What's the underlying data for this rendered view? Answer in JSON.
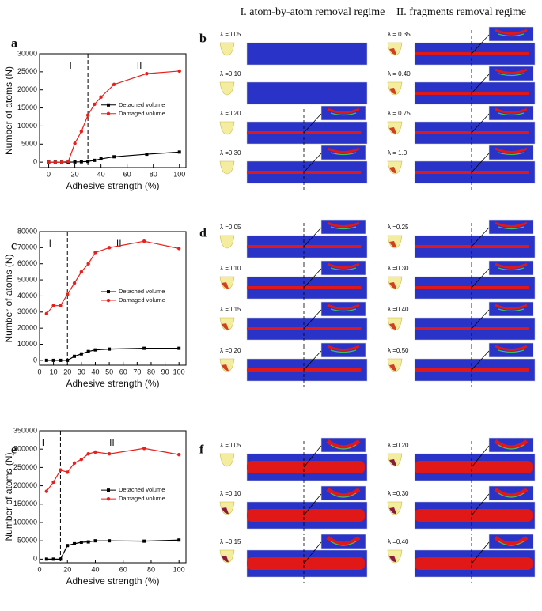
{
  "header": {
    "regime_1": "I. atom-by-atom removal regime",
    "regime_2": "II. fragments removal regime"
  },
  "chart_data": [
    {
      "type": "line",
      "panel_label": "a",
      "x_label": "Adhesive strength (%)",
      "y_label": "Number of atoms (N)",
      "x": [
        0,
        5,
        10,
        15,
        20,
        25,
        30,
        35,
        40,
        50,
        75,
        100
      ],
      "series": [
        {
          "name": "Detached volume",
          "color": "#000000",
          "marker": "square",
          "values": [
            0,
            0,
            0,
            0,
            50,
            100,
            200,
            500,
            900,
            1500,
            2200,
            2800
          ]
        },
        {
          "name": "Damaged volume",
          "color": "#e8201c",
          "marker": "circle",
          "values": [
            0,
            0,
            0,
            200,
            5200,
            8500,
            13000,
            16000,
            18000,
            21500,
            24500,
            25200
          ]
        }
      ],
      "xlim": [
        -7,
        105
      ],
      "xticks": [
        0,
        20,
        40,
        60,
        80,
        100
      ],
      "ylim": [
        -1500,
        30000
      ],
      "yticks": [
        0,
        5000,
        10000,
        15000,
        20000,
        25000,
        30000
      ],
      "divider_x": 30,
      "annotations": [
        "I",
        "II"
      ]
    },
    {
      "type": "line",
      "panel_label": "c",
      "x_label": "Adhesive strength (%)",
      "y_label": "Number of atoms (N)",
      "x": [
        5,
        10,
        15,
        20,
        25,
        30,
        35,
        40,
        50,
        75,
        100
      ],
      "series": [
        {
          "name": "Detached volume",
          "color": "#000000",
          "marker": "square",
          "values": [
            0,
            0,
            0,
            0,
            2500,
            4000,
            5500,
            6500,
            7000,
            7500,
            7500
          ]
        },
        {
          "name": "Damaged volume",
          "color": "#e8201c",
          "marker": "circle",
          "values": [
            29000,
            34000,
            34000,
            41000,
            48000,
            55000,
            60000,
            67000,
            70000,
            74000,
            69500
          ]
        }
      ],
      "xlim": [
        0,
        105
      ],
      "xticks": [
        0,
        10,
        20,
        30,
        40,
        50,
        60,
        70,
        80,
        90,
        100
      ],
      "ylim": [
        -3000,
        80000
      ],
      "yticks": [
        0,
        10000,
        20000,
        30000,
        40000,
        50000,
        60000,
        70000,
        80000
      ],
      "divider_x": 20,
      "annotations": [
        "I",
        "II"
      ]
    },
    {
      "type": "line",
      "panel_label": "e",
      "x_label": "Adhesive strength (%)",
      "y_label": "Number of atoms (N)",
      "x": [
        5,
        10,
        15,
        20,
        25,
        30,
        35,
        40,
        50,
        75,
        100
      ],
      "series": [
        {
          "name": "Detached volume",
          "color": "#000000",
          "marker": "square",
          "values": [
            0,
            0,
            0,
            37000,
            42000,
            46000,
            47000,
            50000,
            50000,
            49000,
            52000
          ]
        },
        {
          "name": "Damaged volume",
          "color": "#e8201c",
          "marker": "circle",
          "values": [
            185000,
            210000,
            243000,
            237000,
            262000,
            272000,
            287000,
            292000,
            287000,
            302000,
            285000
          ]
        }
      ],
      "xlim": [
        0,
        105
      ],
      "xticks": [
        0,
        20,
        40,
        60,
        80,
        100
      ],
      "ylim": [
        -10000,
        350000
      ],
      "yticks": [
        0,
        50000,
        100000,
        150000,
        200000,
        250000,
        300000,
        350000
      ],
      "divider_x": 15,
      "annotations": [
        "I",
        "II"
      ]
    }
  ],
  "panels": [
    {
      "label": "b",
      "left": [
        "λ =0.05",
        "λ =0.10",
        "λ =0.20",
        "λ =0.30"
      ],
      "right": [
        "λ = 0.35",
        "λ = 0.40",
        "λ = 0.75",
        "λ = 1.0"
      ]
    },
    {
      "label": "d",
      "left": [
        "λ =0.05",
        "λ =0.10",
        "λ =0.15",
        "λ =0.20"
      ],
      "right": [
        "λ =0.25",
        "λ =0.30",
        "λ =0.40",
        "λ =0.50"
      ]
    },
    {
      "label": "f",
      "left": [
        "λ =0.05",
        "λ =0.10",
        "λ =0.15"
      ],
      "right": [
        "λ =0.20",
        "λ =0.30",
        "λ =0.40"
      ]
    }
  ]
}
